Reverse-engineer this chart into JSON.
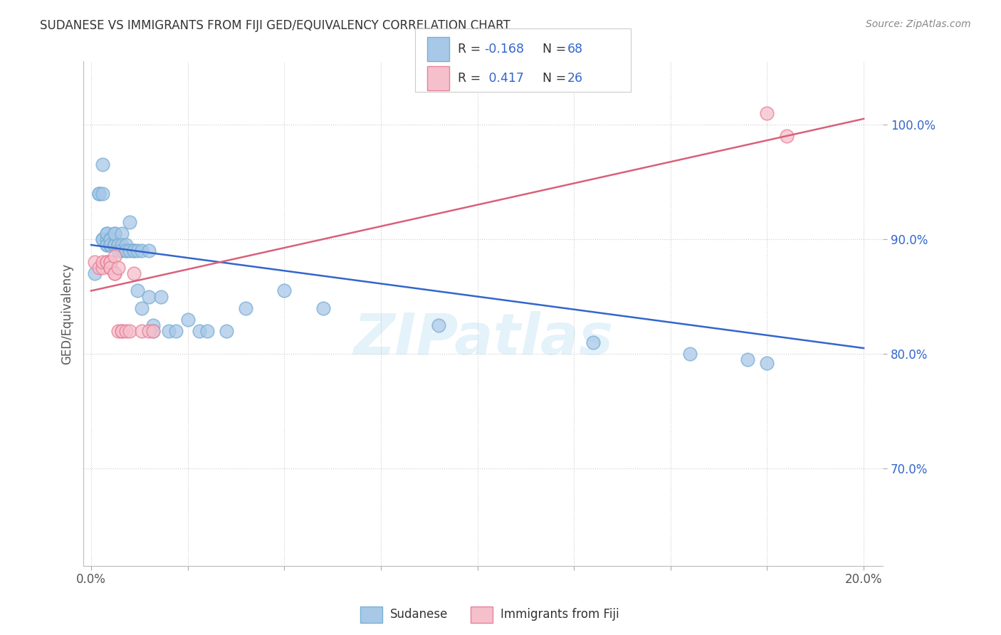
{
  "title": "SUDANESE VS IMMIGRANTS FROM FIJI GED/EQUIVALENCY CORRELATION CHART",
  "source": "Source: ZipAtlas.com",
  "ylabel": "GED/Equivalency",
  "yticks": [
    "70.0%",
    "80.0%",
    "90.0%",
    "100.0%"
  ],
  "ytick_values": [
    0.7,
    0.8,
    0.9,
    1.0
  ],
  "xlim": [
    -0.002,
    0.205
  ],
  "ylim": [
    0.615,
    1.055
  ],
  "color_blue": "#a8c8e8",
  "color_blue_edge": "#7aafd4",
  "color_pink": "#f5c0cc",
  "color_pink_edge": "#e8819a",
  "color_blue_text": "#3366cc",
  "color_pink_line": "#d9607a",
  "watermark": "ZIPatlas",
  "sudanese_x": [
    0.001,
    0.002,
    0.002,
    0.003,
    0.003,
    0.003,
    0.003,
    0.004,
    0.004,
    0.004,
    0.004,
    0.004,
    0.005,
    0.005,
    0.005,
    0.005,
    0.005,
    0.005,
    0.005,
    0.006,
    0.006,
    0.006,
    0.006,
    0.006,
    0.006,
    0.007,
    0.007,
    0.007,
    0.007,
    0.008,
    0.008,
    0.008,
    0.009,
    0.009,
    0.009,
    0.01,
    0.01,
    0.011,
    0.011,
    0.012,
    0.012,
    0.013,
    0.013,
    0.015,
    0.015,
    0.016,
    0.016,
    0.018,
    0.02,
    0.022,
    0.025,
    0.028,
    0.03,
    0.035,
    0.04,
    0.05,
    0.06,
    0.09,
    0.13,
    0.155,
    0.17,
    0.175
  ],
  "sudanese_y": [
    0.87,
    0.94,
    0.94,
    0.965,
    0.94,
    0.9,
    0.9,
    0.9,
    0.895,
    0.905,
    0.905,
    0.895,
    0.895,
    0.895,
    0.895,
    0.9,
    0.9,
    0.9,
    0.895,
    0.895,
    0.895,
    0.895,
    0.895,
    0.905,
    0.905,
    0.895,
    0.895,
    0.895,
    0.89,
    0.905,
    0.895,
    0.89,
    0.89,
    0.895,
    0.89,
    0.915,
    0.89,
    0.89,
    0.89,
    0.855,
    0.89,
    0.89,
    0.84,
    0.85,
    0.89,
    0.825,
    0.82,
    0.85,
    0.82,
    0.82,
    0.83,
    0.82,
    0.82,
    0.82,
    0.84,
    0.855,
    0.84,
    0.825,
    0.81,
    0.8,
    0.795,
    0.792
  ],
  "fiji_x": [
    0.001,
    0.002,
    0.003,
    0.003,
    0.004,
    0.004,
    0.005,
    0.005,
    0.005,
    0.005,
    0.005,
    0.006,
    0.006,
    0.006,
    0.007,
    0.007,
    0.008,
    0.008,
    0.009,
    0.01,
    0.011,
    0.013,
    0.015,
    0.016,
    0.175,
    0.18
  ],
  "fiji_y": [
    0.88,
    0.875,
    0.875,
    0.88,
    0.88,
    0.88,
    0.875,
    0.875,
    0.88,
    0.88,
    0.875,
    0.885,
    0.87,
    0.87,
    0.875,
    0.82,
    0.82,
    0.82,
    0.82,
    0.82,
    0.87,
    0.82,
    0.82,
    0.82,
    1.01,
    0.99
  ],
  "blue_line_x": [
    0.0,
    0.2
  ],
  "blue_line_y": [
    0.895,
    0.805
  ],
  "pink_line_x": [
    0.0,
    0.2
  ],
  "pink_line_y": [
    0.855,
    1.005
  ]
}
